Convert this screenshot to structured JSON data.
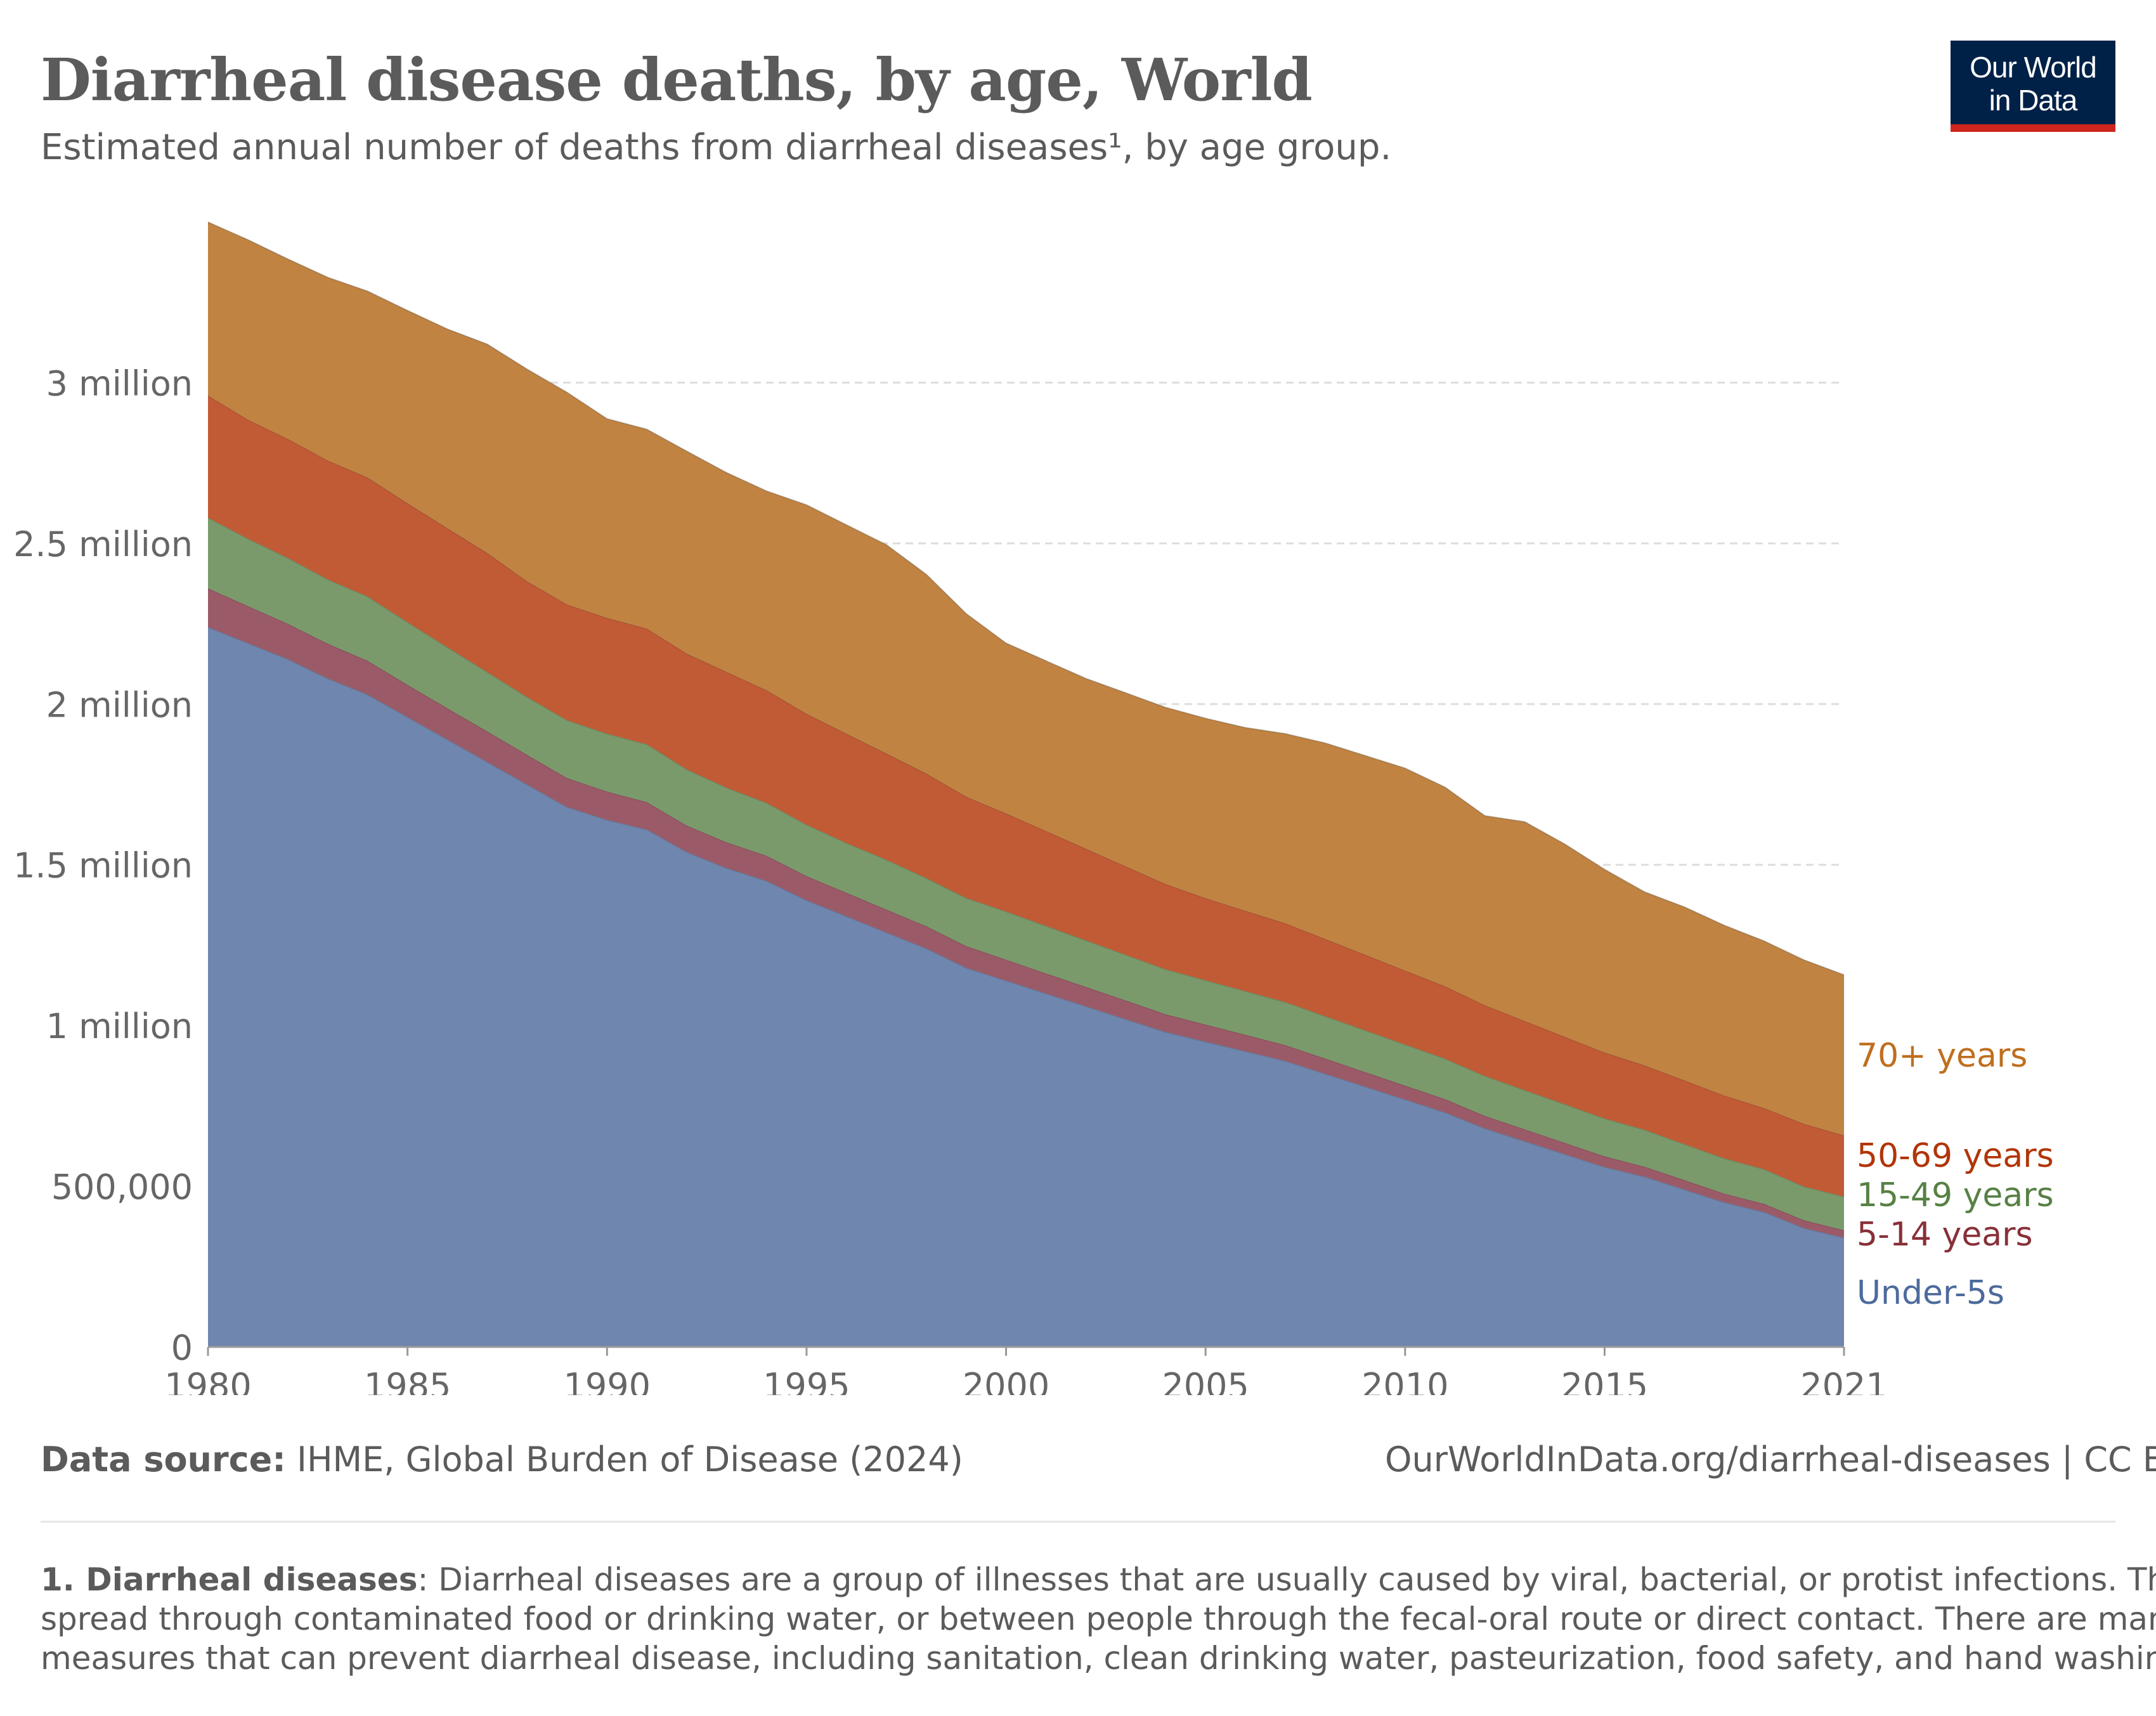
{
  "header": {
    "title": "Diarrheal disease deaths, by age, World",
    "subtitle": "Estimated annual number of deaths from diarrheal diseases¹, by age group."
  },
  "logo": {
    "line1": "Our World",
    "line2": "in Data"
  },
  "footer": {
    "source_label": "Data source:",
    "source_text": " IHME, Global Burden of Disease (2024)",
    "url_license": "OurWorldInData.org/diarrheal-diseases | CC BY"
  },
  "footnote": {
    "term": "1. Diarrheal diseases",
    "line1_rest": ": Diarrheal diseases are a group of illnesses that are usually caused by viral, bacterial, or protist infections. They",
    "line2": "spread through contaminated food or drinking water, or between people through the fecal-oral route or direct contact. There are many",
    "line3": "measures that can prevent diarrheal disease, including sanitation, clean drinking water, pasteurization, food safety, and hand washing."
  },
  "chart_data": {
    "type": "area",
    "stacked": true,
    "title": "Diarrheal disease deaths, by age, World",
    "x": [
      1980,
      1981,
      1982,
      1983,
      1984,
      1985,
      1986,
      1987,
      1988,
      1989,
      1990,
      1991,
      1992,
      1993,
      1994,
      1995,
      1996,
      1997,
      1998,
      1999,
      2000,
      2001,
      2002,
      2003,
      2004,
      2005,
      2006,
      2007,
      2008,
      2009,
      2010,
      2011,
      2012,
      2013,
      2014,
      2015,
      2016,
      2017,
      2018,
      2019,
      2020,
      2021
    ],
    "xlim": [
      1980,
      2021
    ],
    "x_ticks": [
      1980,
      1985,
      1990,
      1995,
      2000,
      2005,
      2010,
      2015,
      2021
    ],
    "ylim": [
      0,
      3500000
    ],
    "y_ticks": [
      0,
      500000,
      1000000,
      1500000,
      2000000,
      2500000,
      3000000
    ],
    "y_tick_labels": [
      "0",
      "500,000",
      "1 million",
      "1.5 million",
      "2 million",
      "2.5 million",
      "3 million"
    ],
    "grid": "horizontal dashed",
    "legend": "labels at right end of areas",
    "series": [
      {
        "name": "Under-5s",
        "color": "#6f86ae",
        "label_color": "#4c6a9c",
        "values": [
          2240000,
          2190000,
          2140000,
          2080000,
          2030000,
          1960000,
          1890000,
          1820000,
          1750000,
          1680000,
          1640000,
          1610000,
          1540000,
          1490000,
          1450000,
          1390000,
          1340000,
          1290000,
          1240000,
          1180000,
          1140000,
          1100000,
          1060000,
          1020000,
          980000,
          950000,
          920000,
          890000,
          850000,
          810000,
          770000,
          730000,
          680000,
          640000,
          600000,
          560000,
          530000,
          490000,
          450000,
          420000,
          370000,
          340000
        ]
      },
      {
        "name": "5-14 years",
        "color": "#9b5a67",
        "label_color": "#883039",
        "values": [
          120000,
          115000,
          110000,
          108000,
          105000,
          100000,
          97000,
          95000,
          92000,
          90000,
          88000,
          85000,
          82000,
          80000,
          78000,
          75000,
          73000,
          71000,
          69000,
          67000,
          65000,
          62000,
          60000,
          58000,
          55000,
          53000,
          51000,
          49000,
          47000,
          45000,
          43000,
          41000,
          39000,
          37000,
          35000,
          33000,
          31000,
          29000,
          27000,
          25000,
          24000,
          23000
        ]
      },
      {
        "name": "15-49 years",
        "color": "#7a9a6b",
        "label_color": "#578145",
        "values": [
          220000,
          210000,
          205000,
          200000,
          200000,
          195000,
          190000,
          185000,
          180000,
          180000,
          180000,
          180000,
          175000,
          170000,
          165000,
          160000,
          155000,
          155000,
          150000,
          150000,
          150000,
          148000,
          145000,
          142000,
          140000,
          138000,
          136000,
          134000,
          132000,
          130000,
          128000,
          126000,
          124000,
          122000,
          120000,
          118000,
          115000,
          112000,
          110000,
          108000,
          105000,
          105000
        ]
      },
      {
        "name": "50-69 years",
        "color": "#c15b35",
        "label_color": "#b13507",
        "values": [
          380000,
          370000,
          370000,
          370000,
          370000,
          370000,
          370000,
          370000,
          360000,
          360000,
          360000,
          360000,
          360000,
          360000,
          350000,
          345000,
          340000,
          330000,
          325000,
          315000,
          305000,
          295000,
          285000,
          275000,
          265000,
          255000,
          250000,
          245000,
          240000,
          235000,
          230000,
          225000,
          220000,
          215000,
          210000,
          205000,
          200000,
          198000,
          195000,
          190000,
          195000,
          190000
        ]
      },
      {
        "name": "70+ years",
        "color": "#c08342",
        "label_color": "#bf6e1e",
        "values": [
          540000,
          560000,
          560000,
          570000,
          580000,
          600000,
          620000,
          650000,
          660000,
          660000,
          620000,
          620000,
          630000,
          620000,
          620000,
          650000,
          650000,
          650000,
          620000,
          570000,
          530000,
          530000,
          530000,
          540000,
          550000,
          560000,
          570000,
          590000,
          610000,
          620000,
          630000,
          620000,
          590000,
          620000,
          600000,
          570000,
          540000,
          540000,
          530000,
          520000,
          510000,
          500000
        ]
      }
    ]
  }
}
